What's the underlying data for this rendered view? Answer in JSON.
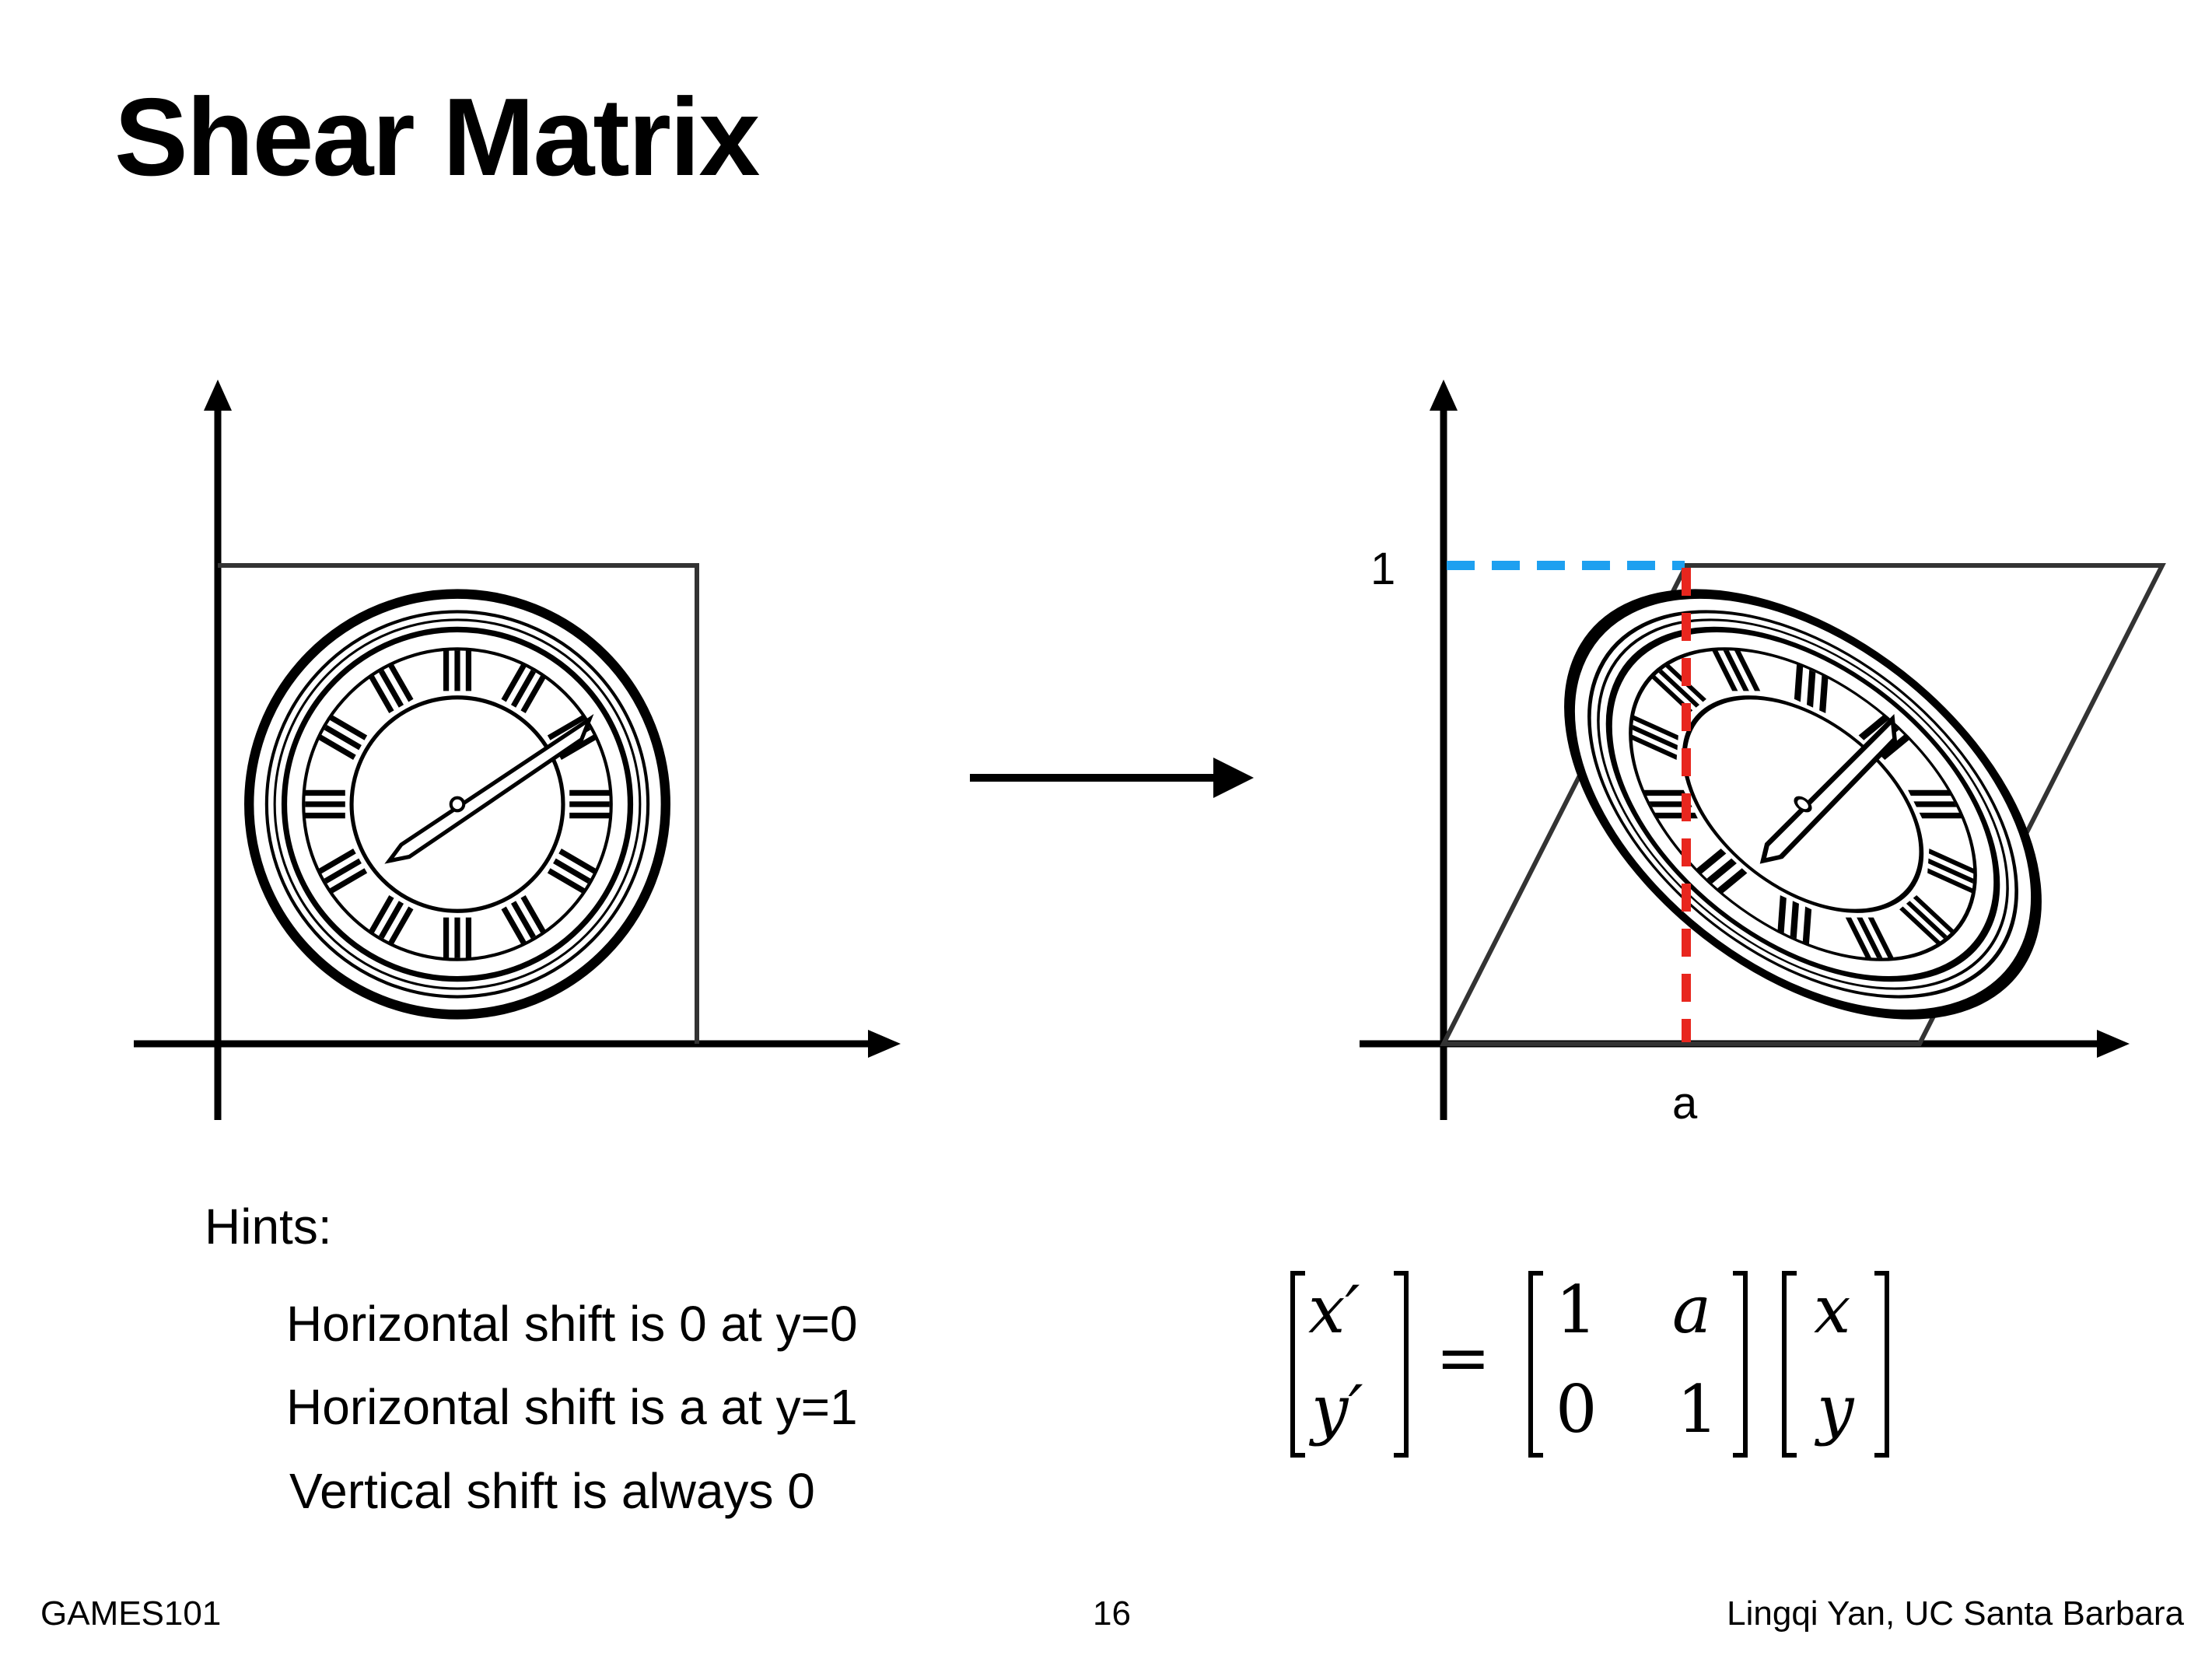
{
  "title": "Shear Matrix",
  "diagram": {
    "label_one": "1",
    "label_a": "a",
    "colors": {
      "blue_dash": "#1ea0f0",
      "red_dash": "#e8261e",
      "stroke": "#000000"
    },
    "icons": [
      "clock-icon",
      "sheared-clock-icon",
      "right-arrow-icon"
    ]
  },
  "hints": {
    "heading": "Hints:",
    "items": [
      "Horizontal shift is 0 at y=0",
      "Horizontal shift is a at y=1",
      "Vertical shift is always 0"
    ]
  },
  "equation": {
    "lhs": [
      "x′",
      "y′"
    ],
    "equals": "=",
    "matrix": [
      [
        "1",
        "a"
      ],
      [
        "0",
        "1"
      ]
    ],
    "rhs": [
      "x",
      "y"
    ]
  },
  "footer": {
    "left": "GAMES101",
    "center": "16",
    "right": "Lingqi Yan, UC Santa Barbara"
  }
}
